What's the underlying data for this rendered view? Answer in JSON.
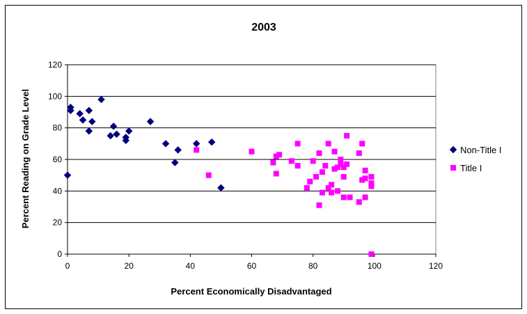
{
  "chart_data": {
    "type": "scatter",
    "title": "2003",
    "xlabel": "Percent Economically Disadvantaged",
    "ylabel": "Percent Reading on Grade Level",
    "xlim": [
      0,
      120
    ],
    "ylim": [
      0,
      120
    ],
    "xticks": [
      0,
      20,
      40,
      60,
      80,
      100,
      120
    ],
    "yticks": [
      0,
      20,
      40,
      60,
      80,
      100,
      120
    ],
    "grid": "horizontal",
    "legend_position": "right",
    "series": [
      {
        "name": "Non-Title I",
        "color": "#00007f",
        "marker": "diamond",
        "points": [
          [
            0,
            50
          ],
          [
            1,
            93
          ],
          [
            1,
            91
          ],
          [
            4,
            89
          ],
          [
            5,
            85
          ],
          [
            7,
            91
          ],
          [
            7,
            78
          ],
          [
            8,
            84
          ],
          [
            11,
            98
          ],
          [
            14,
            75
          ],
          [
            15,
            81
          ],
          [
            16,
            76
          ],
          [
            19,
            74
          ],
          [
            19,
            72
          ],
          [
            20,
            78
          ],
          [
            27,
            84
          ],
          [
            32,
            70
          ],
          [
            35,
            58
          ],
          [
            36,
            66
          ],
          [
            42,
            70
          ],
          [
            47,
            71
          ],
          [
            50,
            42
          ]
        ]
      },
      {
        "name": "Title I",
        "color": "#ff00ff",
        "marker": "square",
        "points": [
          [
            42,
            66
          ],
          [
            46,
            50
          ],
          [
            60,
            65
          ],
          [
            67,
            58
          ],
          [
            68,
            62
          ],
          [
            68,
            51
          ],
          [
            69,
            63
          ],
          [
            73,
            59
          ],
          [
            75,
            70
          ],
          [
            75,
            56
          ],
          [
            78,
            42
          ],
          [
            79,
            46
          ],
          [
            80,
            59
          ],
          [
            81,
            49
          ],
          [
            82,
            64
          ],
          [
            82,
            31
          ],
          [
            83,
            52
          ],
          [
            83,
            39
          ],
          [
            84,
            56
          ],
          [
            85,
            42
          ],
          [
            85,
            70
          ],
          [
            86,
            44
          ],
          [
            86,
            39
          ],
          [
            87,
            65
          ],
          [
            87,
            54
          ],
          [
            88,
            55
          ],
          [
            88,
            40
          ],
          [
            89,
            60
          ],
          [
            89,
            57
          ],
          [
            90,
            49
          ],
          [
            90,
            55
          ],
          [
            90,
            36
          ],
          [
            91,
            57
          ],
          [
            91,
            75
          ],
          [
            92,
            36
          ],
          [
            95,
            64
          ],
          [
            95,
            33
          ],
          [
            96,
            47
          ],
          [
            96,
            70
          ],
          [
            97,
            53
          ],
          [
            97,
            48
          ],
          [
            97,
            36
          ],
          [
            99,
            49
          ],
          [
            99,
            45
          ],
          [
            99,
            43
          ],
          [
            99,
            0
          ]
        ]
      }
    ]
  }
}
